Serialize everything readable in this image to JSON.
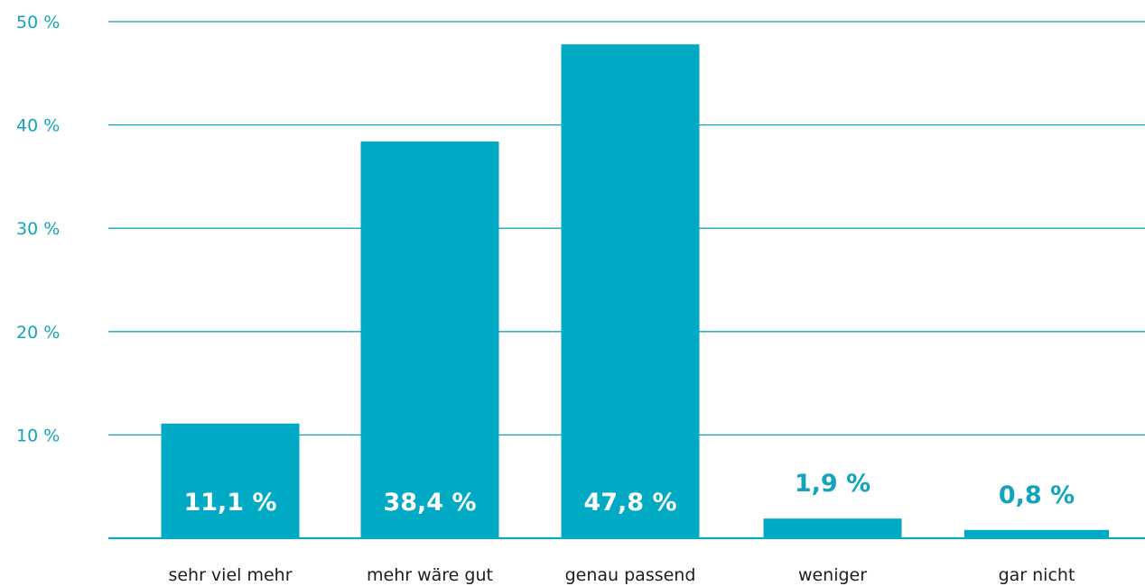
{
  "colors": {
    "bar": "#00aac5",
    "grid": "#12a4bd",
    "axis_text": "#12a4bd",
    "category_text": "#1e1e1e",
    "inside_label": "#ffffff",
    "outside_label": "#12a4bd"
  },
  "chart_data": {
    "type": "bar",
    "title": "",
    "xlabel": "",
    "ylabel": "",
    "categories": [
      "sehr viel mehr",
      "mehr wäre gut",
      "genau passend",
      "weniger",
      "gar nicht"
    ],
    "values": [
      11.1,
      38.4,
      47.8,
      1.9,
      0.8
    ],
    "value_labels": [
      "11,1 %",
      "38,4 %",
      "47,8 %",
      "1,9 %",
      "0,8 %"
    ],
    "ylim": [
      0,
      50
    ],
    "yticks": [
      10,
      20,
      30,
      40,
      50
    ],
    "ytick_labels": [
      "10 %",
      "20 %",
      "30 %",
      "40 %",
      "50 %"
    ],
    "grid": true,
    "legend": "none"
  }
}
